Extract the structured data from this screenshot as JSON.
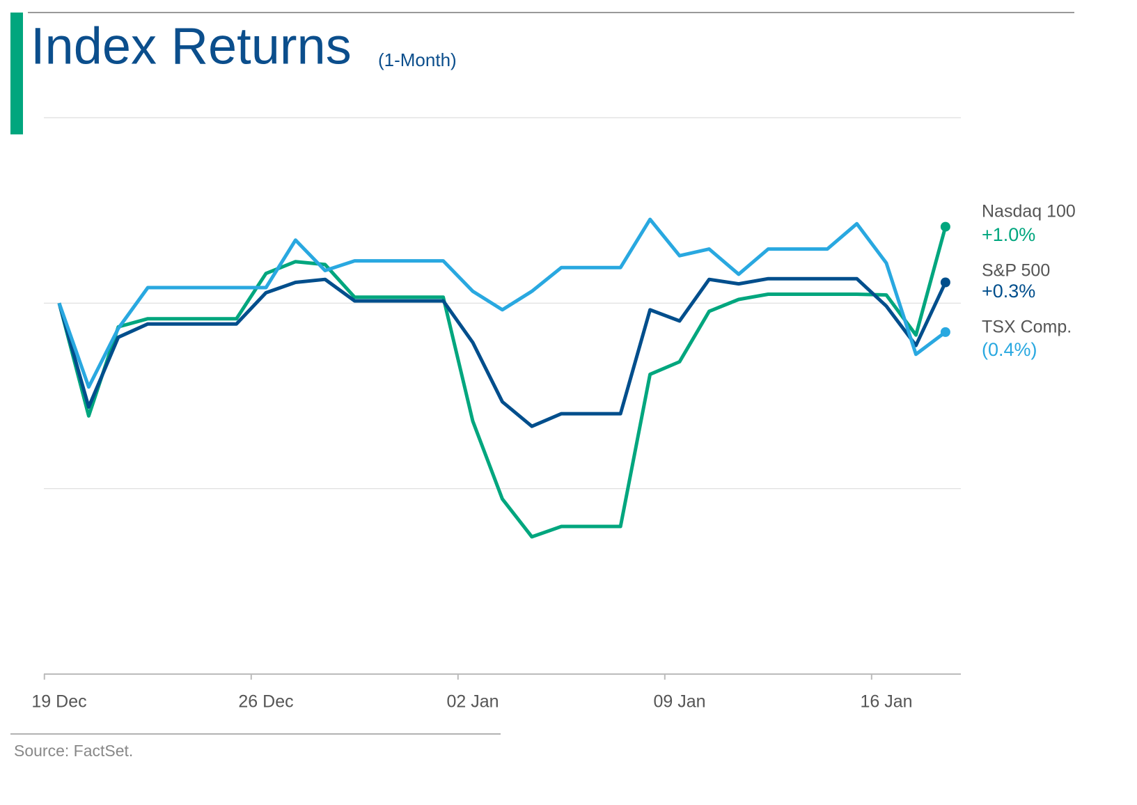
{
  "chart_data": {
    "type": "line",
    "title": "Index Returns",
    "subtitle": "(1-Month)",
    "source": "Source: FactSet.",
    "categories": [
      "19 Dec",
      null,
      null,
      null,
      null,
      null,
      null,
      "26 Dec",
      null,
      null,
      null,
      null,
      null,
      null,
      "02 Jan",
      null,
      null,
      null,
      null,
      null,
      null,
      "09 Jan",
      null,
      null,
      null,
      null,
      null,
      null,
      "16 Jan",
      null,
      null
    ],
    "ylim": [
      -5,
      2.5
    ],
    "yticks": [
      -5,
      -2.5,
      0,
      2.5
    ],
    "grid": true,
    "series": [
      {
        "name": "Nasdaq 100",
        "color": "#00a67e",
        "values": [
          0,
          -1.52,
          -0.32,
          -0.21,
          -0.21,
          -0.21,
          -0.21,
          0.4,
          0.56,
          0.52,
          0.08,
          0.08,
          0.08,
          0.08,
          -1.59,
          -2.64,
          -3.15,
          -3.01,
          -3.01,
          -3.01,
          -0.96,
          -0.79,
          -0.11,
          0.05,
          0.12,
          0.12,
          0.12,
          0.12,
          0.11,
          -0.43,
          1.03
        ],
        "value_labels": [
          null,
          null,
          null,
          null,
          null,
          null,
          null,
          null,
          null,
          null,
          null,
          null,
          null,
          null,
          null,
          null,
          null,
          null,
          null,
          null,
          null,
          null,
          null,
          null,
          null,
          null,
          null,
          null,
          null,
          null,
          "+1.0%"
        ]
      },
      {
        "name": "S&P 500",
        "color": "#004e8c",
        "values": [
          0,
          -1.4,
          -0.46,
          -0.28,
          -0.28,
          -0.28,
          -0.28,
          0.14,
          0.28,
          0.32,
          0.03,
          0.03,
          0.03,
          0.03,
          -0.53,
          -1.33,
          -1.66,
          -1.49,
          -1.49,
          -1.49,
          -0.09,
          -0.24,
          0.32,
          0.26,
          0.33,
          0.33,
          0.33,
          0.33,
          -0.04,
          -0.57,
          0.28
        ],
        "value_labels": [
          null,
          null,
          null,
          null,
          null,
          null,
          null,
          null,
          null,
          null,
          null,
          null,
          null,
          null,
          null,
          null,
          null,
          null,
          null,
          null,
          null,
          null,
          null,
          null,
          null,
          null,
          null,
          null,
          null,
          null,
          "+0.3%"
        ]
      },
      {
        "name": "TSX Comp.",
        "color": "#29a8e0",
        "values": [
          0,
          -1.13,
          -0.34,
          0.21,
          0.21,
          0.21,
          0.21,
          0.21,
          0.85,
          0.44,
          0.57,
          0.57,
          0.57,
          0.57,
          0.16,
          -0.09,
          0.16,
          0.48,
          0.48,
          0.48,
          1.13,
          0.64,
          0.73,
          0.39,
          0.73,
          0.73,
          0.73,
          1.07,
          0.54,
          -0.69,
          -0.39
        ],
        "value_labels": [
          null,
          null,
          null,
          null,
          null,
          null,
          null,
          null,
          null,
          null,
          null,
          null,
          null,
          null,
          null,
          null,
          null,
          null,
          null,
          null,
          null,
          null,
          null,
          null,
          null,
          null,
          null,
          null,
          null,
          null,
          "(0.4%)"
        ]
      }
    ]
  }
}
